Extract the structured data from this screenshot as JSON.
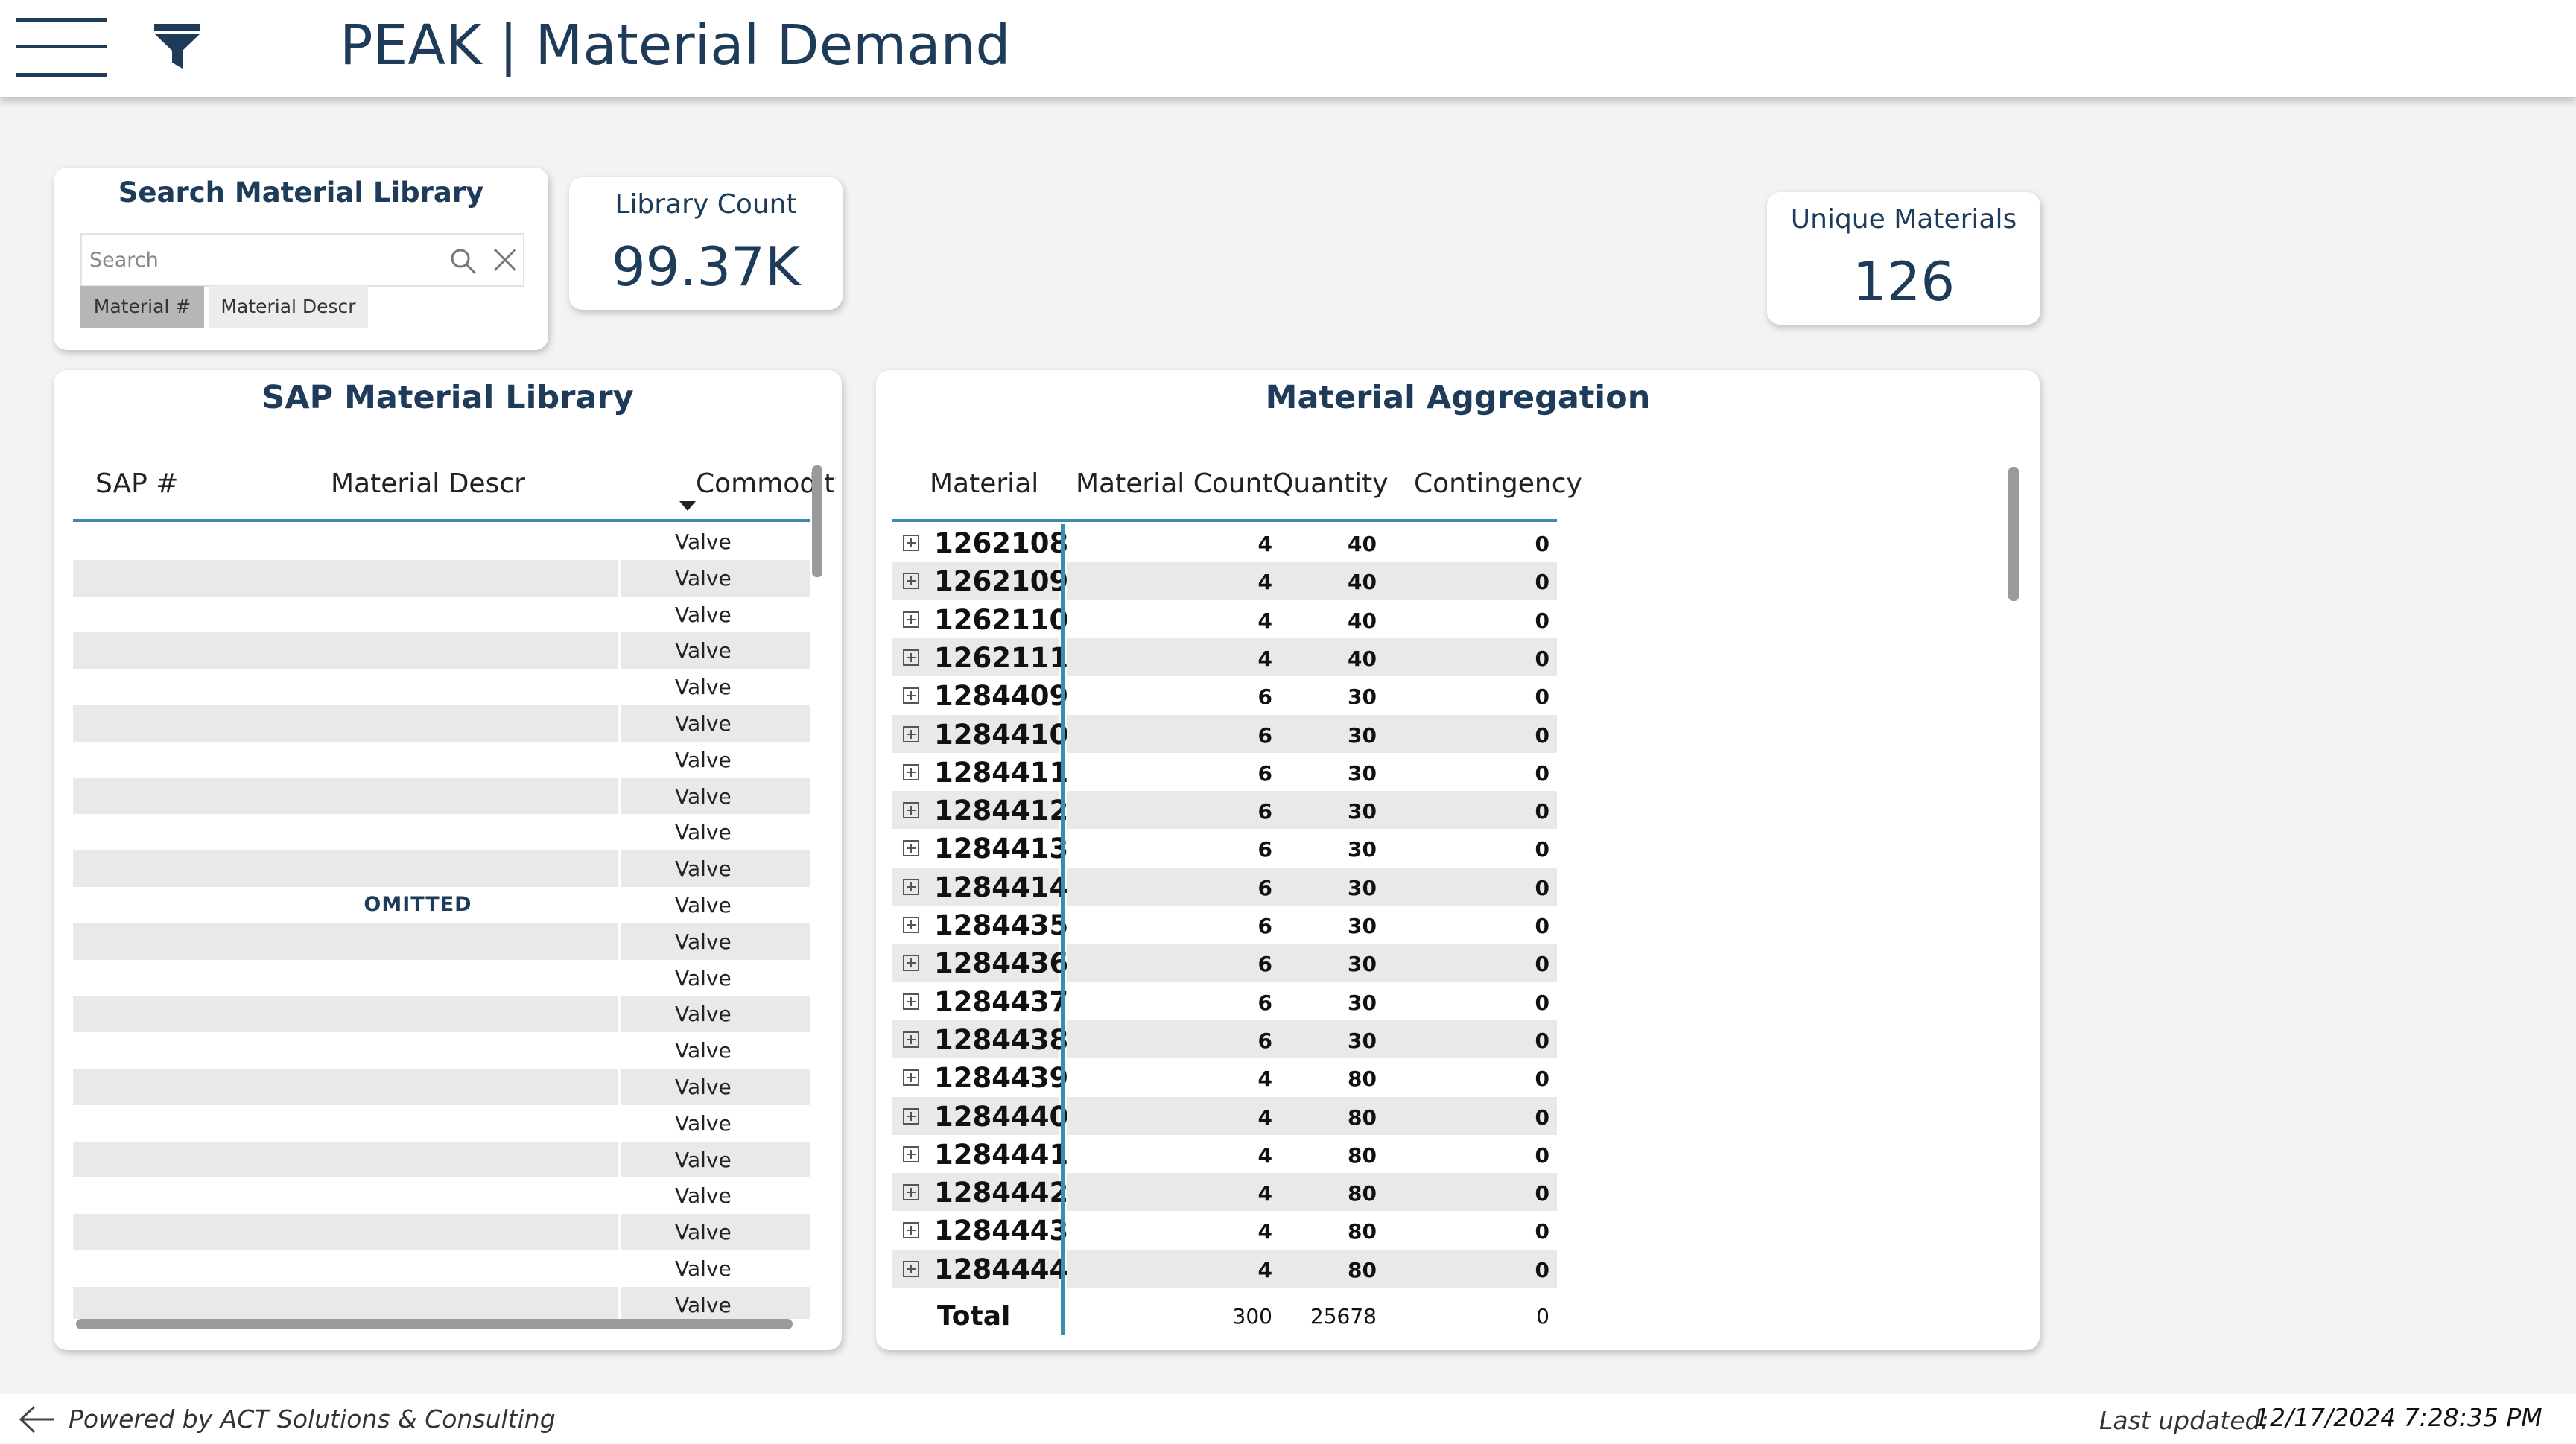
{
  "header": {
    "title": "PEAK | Material Demand",
    "menu_icon": "hamburger-menu-icon",
    "filter_icon": "funnel-filter-icon",
    "brand_color": "#1e3b5a"
  },
  "search": {
    "title": "Search Material Library",
    "placeholder": "Search",
    "fields": [
      "Material #",
      "Material Descr"
    ],
    "selected_field": "Material #"
  },
  "kpis": {
    "library_count": {
      "label": "Library Count",
      "value": "99.37K"
    },
    "unique_materials": {
      "label": "Unique Materials",
      "value": "126"
    }
  },
  "library": {
    "title": "SAP Material Library",
    "columns": [
      "SAP #",
      "Material Descr",
      "Commodity"
    ],
    "sorted_column": "Commodity",
    "omitted_label": "OMITTED",
    "rows": [
      "Valve",
      "Valve",
      "Valve",
      "Valve",
      "Valve",
      "Valve",
      "Valve",
      "Valve",
      "Valve",
      "Valve",
      "Valve",
      "Valve",
      "Valve",
      "Valve",
      "Valve",
      "Valve",
      "Valve",
      "Valve",
      "Valve",
      "Valve",
      "Valve",
      "Valve"
    ]
  },
  "aggregation": {
    "title": "Material Aggregation",
    "columns": [
      "Material",
      "Material Count",
      "Quantity",
      "Contingency"
    ],
    "accent_color": "#3b8cb0",
    "rows": [
      {
        "material": "1262108",
        "count": "4",
        "qty": "40",
        "cont": "0"
      },
      {
        "material": "1262109",
        "count": "4",
        "qty": "40",
        "cont": "0"
      },
      {
        "material": "1262110",
        "count": "4",
        "qty": "40",
        "cont": "0"
      },
      {
        "material": "1262111",
        "count": "4",
        "qty": "40",
        "cont": "0"
      },
      {
        "material": "1284409",
        "count": "6",
        "qty": "30",
        "cont": "0"
      },
      {
        "material": "1284410",
        "count": "6",
        "qty": "30",
        "cont": "0"
      },
      {
        "material": "1284411",
        "count": "6",
        "qty": "30",
        "cont": "0"
      },
      {
        "material": "1284412",
        "count": "6",
        "qty": "30",
        "cont": "0"
      },
      {
        "material": "1284413",
        "count": "6",
        "qty": "30",
        "cont": "0"
      },
      {
        "material": "1284414",
        "count": "6",
        "qty": "30",
        "cont": "0"
      },
      {
        "material": "1284435",
        "count": "6",
        "qty": "30",
        "cont": "0"
      },
      {
        "material": "1284436",
        "count": "6",
        "qty": "30",
        "cont": "0"
      },
      {
        "material": "1284437",
        "count": "6",
        "qty": "30",
        "cont": "0"
      },
      {
        "material": "1284438",
        "count": "6",
        "qty": "30",
        "cont": "0"
      },
      {
        "material": "1284439",
        "count": "4",
        "qty": "80",
        "cont": "0"
      },
      {
        "material": "1284440",
        "count": "4",
        "qty": "80",
        "cont": "0"
      },
      {
        "material": "1284441",
        "count": "4",
        "qty": "80",
        "cont": "0"
      },
      {
        "material": "1284442",
        "count": "4",
        "qty": "80",
        "cont": "0"
      },
      {
        "material": "1284443",
        "count": "4",
        "qty": "80",
        "cont": "0"
      },
      {
        "material": "1284444",
        "count": "4",
        "qty": "80",
        "cont": "0"
      }
    ],
    "total": {
      "label": "Total",
      "count": "300",
      "qty": "25678",
      "cont": "0"
    }
  },
  "footer": {
    "back_icon": "arrow-left-icon",
    "powered_by": "Powered by ACT Solutions & Consulting",
    "last_updated_label": "Last updated:",
    "last_updated_value": "12/17/2024 7:28:35 PM"
  }
}
